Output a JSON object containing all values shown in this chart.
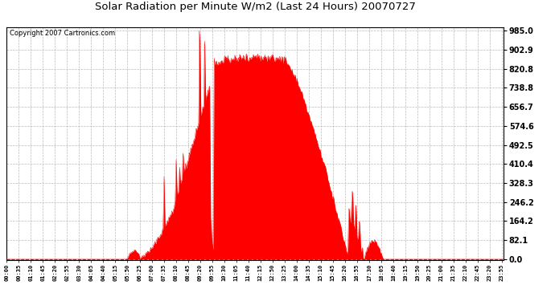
{
  "title": "Solar Radiation per Minute W/m2 (Last 24 Hours) 20070727",
  "copyright": "Copyright 2007 Cartronics.com",
  "bg_color": "#ffffff",
  "fill_color": "#ff0000",
  "line_color": "#ff0000",
  "dashed_line_color": "#ff0000",
  "grid_color": "#bbbbbb",
  "yticks": [
    0.0,
    82.1,
    164.2,
    246.2,
    328.3,
    410.4,
    492.5,
    574.6,
    656.7,
    738.8,
    820.8,
    902.9,
    985.0
  ],
  "ymax": 985.0,
  "ymin": 0.0,
  "num_points": 1440
}
